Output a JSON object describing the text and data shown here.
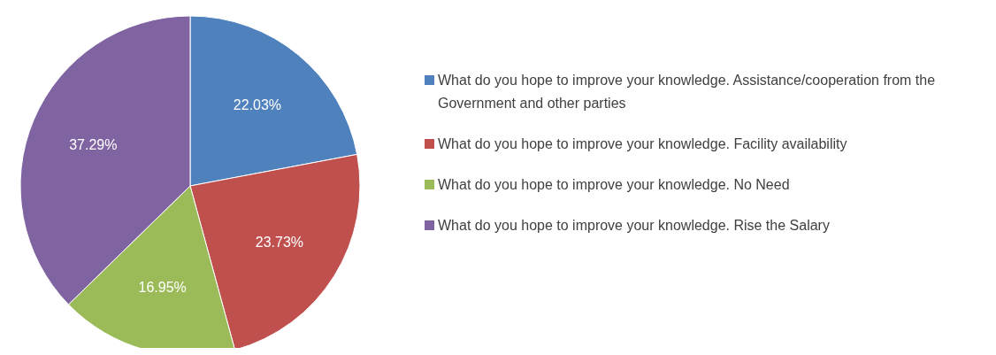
{
  "chart_data": {
    "type": "pie",
    "categories": [
      "What do you hope to improve your knowledge.  Assistance/cooperation from the Government and other parties",
      "What do you hope to improve your knowledge.  Facility availability",
      "What do you hope to improve your knowledge.  No Need",
      "What do you hope to improve your knowledge.  Rise the Salary"
    ],
    "values": [
      22.03,
      23.73,
      16.95,
      37.29
    ],
    "colors": [
      "#4f81bd",
      "#c0504d",
      "#9bbb59",
      "#8064a2"
    ],
    "value_labels": [
      "22.03%",
      "23.73%",
      "16.95%",
      "37.29%"
    ],
    "legend": "right"
  }
}
